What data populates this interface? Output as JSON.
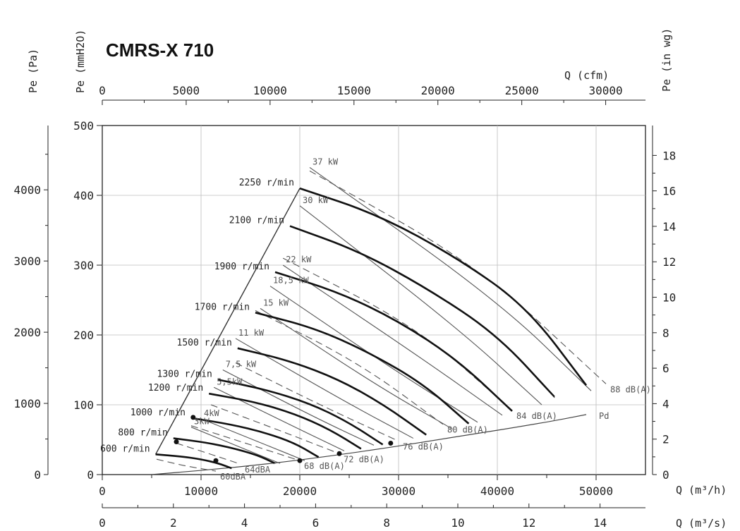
{
  "chart_data": {
    "type": "line",
    "title": "CMRS-X 710",
    "axes": {
      "x_bottom_m3h": {
        "label": "Q (m³/h)",
        "range": [
          0,
          55000
        ],
        "ticks": [
          0,
          10000,
          20000,
          30000,
          40000,
          50000
        ]
      },
      "x_bottom_m3s": {
        "label": "Q (m³/s)",
        "ticks": [
          0,
          2,
          4,
          6,
          8,
          10,
          12,
          14
        ]
      },
      "x_top_cfm": {
        "label": "Q (cfm)",
        "ticks": [
          0,
          5000,
          10000,
          15000,
          20000,
          25000,
          30000
        ]
      },
      "y_left_mmH2O": {
        "label": "Pe (mmH2O)",
        "range": [
          0,
          500
        ],
        "ticks": [
          0,
          100,
          200,
          300,
          400,
          500
        ]
      },
      "y_left_Pa": {
        "label": "Pe (Pa)",
        "ticks": [
          0,
          1000,
          2000,
          3000,
          4000
        ]
      },
      "y_right_inwg": {
        "label": "Pe (in wg)",
        "ticks": [
          0,
          2,
          4,
          6,
          8,
          10,
          12,
          14,
          16,
          18
        ]
      }
    },
    "grid": true,
    "speed_curves": [
      {
        "label": "2250 r/min",
        "x": [
          20000,
          28000,
          36000,
          43000,
          49000
        ],
        "y": [
          410,
          372,
          310,
          240,
          128
        ]
      },
      {
        "label": "2100 r/min",
        "x": [
          19000,
          26000,
          33000,
          40000,
          45800
        ],
        "y": [
          356,
          320,
          266,
          200,
          111
        ]
      },
      {
        "label": "1900 r/min",
        "x": [
          17500,
          24000,
          30000,
          36000,
          41500
        ],
        "y": [
          290,
          261,
          220,
          164,
          91
        ]
      },
      {
        "label": "1700 r/min",
        "x": [
          15500,
          21500,
          27000,
          32500,
          37100
        ],
        "y": [
          232,
          210,
          175,
          130,
          73
        ]
      },
      {
        "label": "1500 r/min",
        "x": [
          13700,
          19000,
          24000,
          28500,
          32800
        ],
        "y": [
          181,
          163,
          136,
          100,
          57
        ]
      },
      {
        "label": "1300 r/min",
        "x": [
          11700,
          16500,
          21000,
          24800,
          28400
        ],
        "y": [
          136,
          122,
          102,
          76,
          43
        ]
      },
      {
        "label": "1200 r/min",
        "x": [
          10800,
          15500,
          19500,
          23000,
          26200
        ],
        "y": [
          116,
          104,
          87,
          65,
          37
        ]
      },
      {
        "label": "1000 r/min",
        "x": [
          9000,
          13000,
          16500,
          19500,
          21900
        ],
        "y": [
          81,
          72,
          60,
          45,
          25
        ]
      },
      {
        "label": "800 r/min",
        "x": [
          7200,
          10500,
          13200,
          15700,
          17500
        ],
        "y": [
          52,
          46,
          38,
          28,
          16
        ]
      },
      {
        "label": "600 r/min",
        "x": [
          5400,
          8000,
          10000,
          11800,
          13100
        ],
        "y": [
          29,
          26,
          22,
          16,
          9
        ]
      }
    ],
    "power_lines": [
      {
        "label": "37 kW",
        "x": [
          21000,
          40000,
          49500
        ],
        "y": [
          440,
          250,
          120
        ]
      },
      {
        "label": "30 kW",
        "x": [
          20000,
          36000,
          44500
        ],
        "y": [
          385,
          210,
          100
        ]
      },
      {
        "label": "22 kW",
        "x": [
          18300,
          32000,
          40500
        ],
        "y": [
          300,
          170,
          85
        ]
      },
      {
        "label": "18,5 kW",
        "x": [
          17000,
          29500,
          38000
        ],
        "y": [
          270,
          150,
          75
        ]
      },
      {
        "label": "15 kW",
        "x": [
          16000,
          27500,
          35500
        ],
        "y": [
          238,
          130,
          65
        ]
      },
      {
        "label": "11 kW",
        "x": [
          13500,
          24500,
          31500
        ],
        "y": [
          195,
          105,
          52
        ]
      },
      {
        "label": "7,5 kW",
        "x": [
          12200,
          21500,
          27500
        ],
        "y": [
          150,
          82,
          42
        ]
      },
      {
        "label": "5,5kW",
        "x": [
          11300,
          19500,
          24500
        ],
        "y": [
          125,
          68,
          34
        ]
      },
      {
        "label": "4kW",
        "x": [
          10000,
          16500,
          20500
        ],
        "y": [
          80,
          43,
          20
        ]
      },
      {
        "label": "3kW",
        "x": [
          9000,
          14500,
          18000
        ],
        "y": [
          68,
          36,
          16
        ]
      }
    ],
    "noise_lines": [
      {
        "label": "88 dB(A)",
        "x": [
          21000,
          38000,
          51000
        ],
        "y": [
          435,
          300,
          130
        ]
      },
      {
        "label": "84 dB(A)",
        "x": [
          18300,
          32000,
          41500
        ],
        "y": [
          310,
          210,
          92
        ]
      },
      {
        "label": "80 dB(A)",
        "x": [
          15500,
          26000,
          34500
        ],
        "y": [
          235,
          160,
          72
        ]
      },
      {
        "label": "76 dB(A)",
        "x": [
          13500,
          22000,
          30000
        ],
        "y": [
          160,
          100,
          48
        ]
      },
      {
        "label": "72 dB(A)",
        "x": [
          11000,
          18000,
          24000
        ],
        "y": [
          100,
          63,
          30
        ]
      },
      {
        "label": "68 dB(A)",
        "x": [
          9000,
          14500,
          20000
        ],
        "y": [
          70,
          45,
          20
        ]
      },
      {
        "label": "64dBA",
        "x": [
          7500,
          10800,
          14000
        ],
        "y": [
          45,
          30,
          15
        ]
      },
      {
        "label": "60dBA",
        "x": [
          5500,
          8500,
          11500
        ],
        "y": [
          22,
          12,
          5
        ]
      }
    ],
    "noise_markers": [
      {
        "x": 9200,
        "y": 82
      },
      {
        "x": 7500,
        "y": 47
      },
      {
        "x": 11500,
        "y": 20
      },
      {
        "x": 20000,
        "y": 20
      },
      {
        "x": 24000,
        "y": 30
      },
      {
        "x": 29200,
        "y": 45
      }
    ],
    "dynamic_pressure": {
      "label": "Pd",
      "x": [
        5000,
        15000,
        25000,
        35000,
        45000,
        49000
      ],
      "y": [
        0,
        12,
        30,
        52,
        75,
        86
      ]
    },
    "envelope": {
      "x": [
        5400,
        20000
      ],
      "y": [
        29,
        410
      ]
    }
  }
}
